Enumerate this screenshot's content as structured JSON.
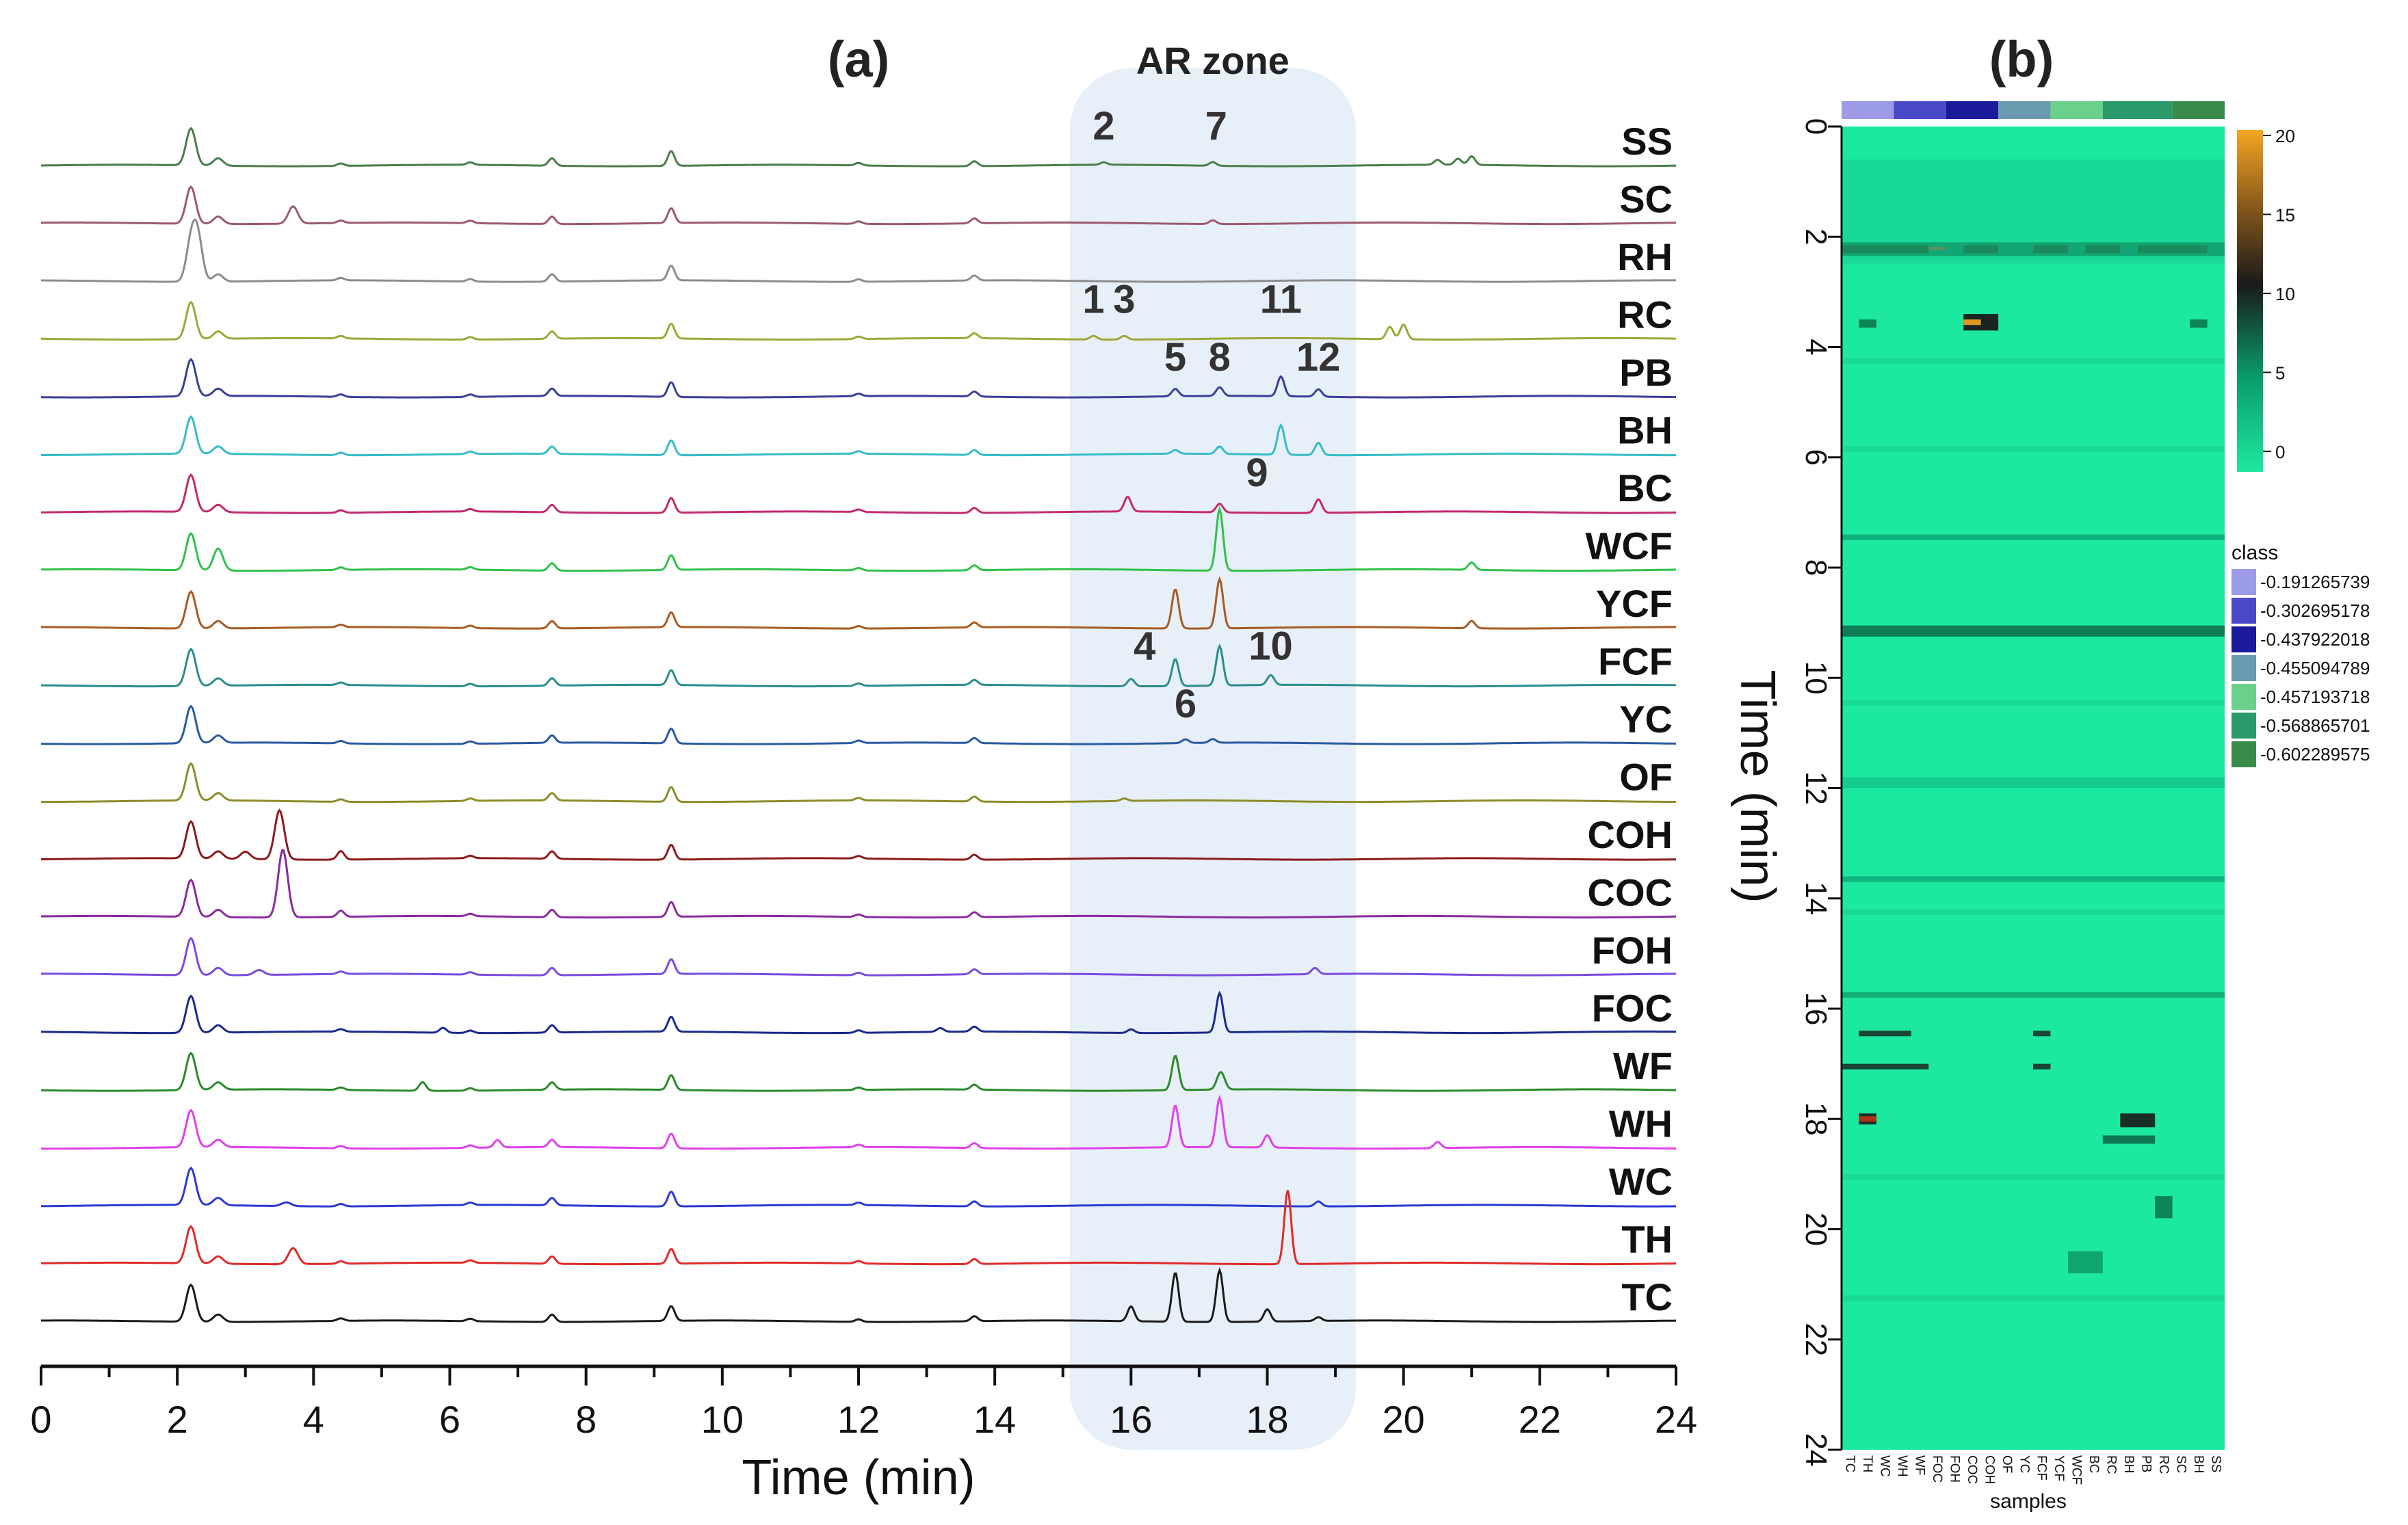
{
  "chart_data": [
    {
      "type": "line",
      "panel": "(a)",
      "xlabel": "Time (min)",
      "xlim": [
        0,
        24
      ],
      "xticks": [
        0,
        2,
        4,
        6,
        8,
        10,
        12,
        14,
        16,
        18,
        20,
        22,
        24
      ],
      "zone": {
        "label": "AR zone",
        "x_range": [
          15.1,
          19.3
        ]
      },
      "samples": [
        {
          "name": "SS",
          "color": "#4a7d4a"
        },
        {
          "name": "SC",
          "color": "#9b5a6e"
        },
        {
          "name": "RH",
          "color": "#8c8c8c"
        },
        {
          "name": "RC",
          "color": "#9aa936"
        },
        {
          "name": "PB",
          "color": "#3a3f9a"
        },
        {
          "name": "BH",
          "color": "#35bcc9"
        },
        {
          "name": "BC",
          "color": "#c22a6e"
        },
        {
          "name": "WCF",
          "color": "#2fc24a"
        },
        {
          "name": "YCF",
          "color": "#a85a22"
        },
        {
          "name": "FCF",
          "color": "#2a8c8c"
        },
        {
          "name": "YC",
          "color": "#2a5aa0"
        },
        {
          "name": "OF",
          "color": "#8c8c2a"
        },
        {
          "name": "COH",
          "color": "#8c1a1a"
        },
        {
          "name": "COC",
          "color": "#8a2aa0"
        },
        {
          "name": "FOH",
          "color": "#7a4ae0"
        },
        {
          "name": "FOC",
          "color": "#1a2a8c"
        },
        {
          "name": "WF",
          "color": "#2a8a2a"
        },
        {
          "name": "WH",
          "color": "#e040e8"
        },
        {
          "name": "WC",
          "color": "#2a3ad0"
        },
        {
          "name": "TH",
          "color": "#e02a2a"
        },
        {
          "name": "TC",
          "color": "#1a1a1a"
        }
      ],
      "common_peaks": [
        {
          "t": 2.2,
          "h": 3.0
        },
        {
          "t": 2.6,
          "h": 0.6
        },
        {
          "t": 4.4,
          "h": 0.2
        },
        {
          "t": 6.3,
          "h": 0.2
        },
        {
          "t": 7.5,
          "h": 0.6
        },
        {
          "t": 9.25,
          "h": 1.2
        },
        {
          "t": 12.0,
          "h": 0.2
        },
        {
          "t": 13.7,
          "h": 0.4
        }
      ],
      "peak_annotations": [
        {
          "label": "1",
          "t": 15.45,
          "sample": "RC"
        },
        {
          "label": "2",
          "t": 15.6,
          "sample": "SS"
        },
        {
          "label": "3",
          "t": 15.9,
          "sample": "RC"
        },
        {
          "label": "4",
          "t": 16.2,
          "sample": "FCF"
        },
        {
          "label": "5",
          "t": 16.65,
          "sample": "PB"
        },
        {
          "label": "6",
          "t": 16.8,
          "sample": "YC"
        },
        {
          "label": "7",
          "t": 17.25,
          "sample": "SS"
        },
        {
          "label": "8",
          "t": 17.3,
          "sample": "PB"
        },
        {
          "label": "9",
          "t": 17.85,
          "sample": "BC"
        },
        {
          "label": "10",
          "t": 18.05,
          "sample": "FCF"
        },
        {
          "label": "11",
          "t": 18.2,
          "sample": "RC"
        },
        {
          "label": "12",
          "t": 18.75,
          "sample": "PB"
        }
      ]
    },
    {
      "type": "heatmap",
      "panel": "(b)",
      "ylabel": "Time (min)",
      "ylim": [
        0,
        24
      ],
      "yticks": [
        0,
        2,
        4,
        6,
        8,
        10,
        12,
        14,
        16,
        18,
        20,
        22,
        24
      ],
      "xlabel": "samples",
      "columns": [
        "TC",
        "TH",
        "WC",
        "WH",
        "WF",
        "FOC",
        "FOH",
        "COC",
        "COH",
        "OF",
        "YC",
        "FCF",
        "YCF",
        "WCF",
        "BC",
        "RC",
        "BH",
        "PB",
        "RC",
        "SC",
        "BH",
        "SS"
      ],
      "base_color": "#1de8a0",
      "colorbar": {
        "ticks": [
          20,
          15,
          10,
          5,
          0
        ],
        "colors": [
          "#f5a623",
          "#8a5a1a",
          "#1a1a1a",
          "#0a9a6a",
          "#1de8a0"
        ]
      },
      "class_legend": {
        "title": "class",
        "entries": [
          {
            "value": "-0.191265739",
            "color": "#9b9be8"
          },
          {
            "value": "-0.302695178",
            "color": "#4a4ac8"
          },
          {
            "value": "-0.437922018",
            "color": "#1a1a9a"
          },
          {
            "value": "-0.455094789",
            "color": "#6a9ab0"
          },
          {
            "value": "-0.457193718",
            "color": "#6ad08a"
          },
          {
            "value": "-0.568865701",
            "color": "#2a9a6a"
          },
          {
            "value": "-0.602289575",
            "color": "#3a8a4a"
          }
        ]
      },
      "class_bar_order": [
        0,
        1,
        2,
        3,
        4,
        5,
        6
      ]
    }
  ],
  "labels": {
    "panel_a": "(a)",
    "panel_b": "(b)",
    "zone": "AR zone",
    "x_title": "Time (min)",
    "hm_y_title": "Time (min)",
    "hm_x_title": "samples",
    "class_title": "class"
  }
}
